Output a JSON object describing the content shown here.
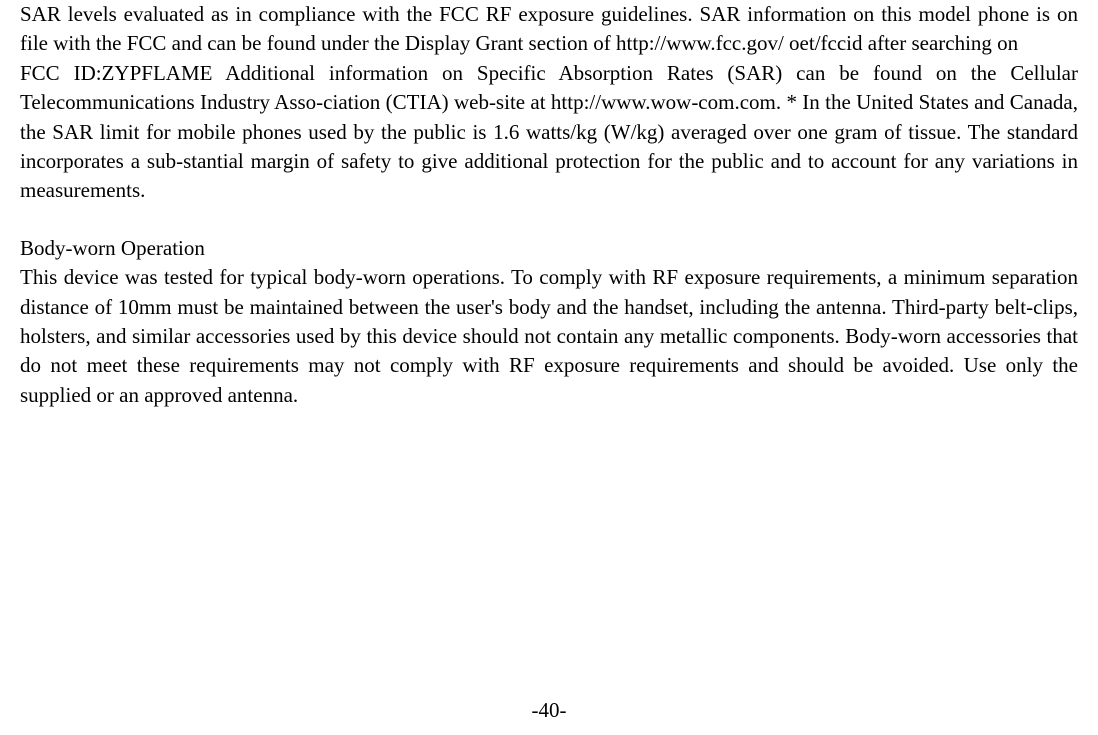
{
  "document": {
    "font_family": "Times New Roman",
    "font_size_pt": 16,
    "text_color": "#000000",
    "background_color": "#ffffff",
    "text_align": "justify",
    "paragraphs": {
      "p1": "SAR levels evaluated as in compliance with the FCC RF exposure guidelines. SAR information on this model phone is on file with the FCC and can be found under the Display Grant section of http://www.fcc.gov/ oet/fccid after searching on",
      "p2": "FCC ID:ZYPFLAME Additional information on Specific Absorption Rates (SAR) can be found on the Cellular Telecommunications Industry Asso-ciation (CTIA) web-site at http://www.wow-com.com. * In the United States and Canada, the SAR limit for mobile phones used by the public is 1.6 watts/kg (W/kg) averaged over one gram of tissue. The standard incorporates a sub-stantial margin of safety to give additional protection for the public and to account for any variations in measurements.",
      "heading1": "Body-worn Operation",
      "p3": "This device was tested for typical body-worn operations. To comply with RF exposure requirements, a minimum separation distance of 10mm must be maintained between the user's body and the handset, including the antenna. Third-party belt-clips, holsters, and similar accessories used by this device should not contain any metallic components. Body-worn accessories that do not meet these requirements may not comply with RF exposure requirements and should be avoided. Use only the supplied or an approved antenna."
    },
    "page_number": "-40-"
  }
}
